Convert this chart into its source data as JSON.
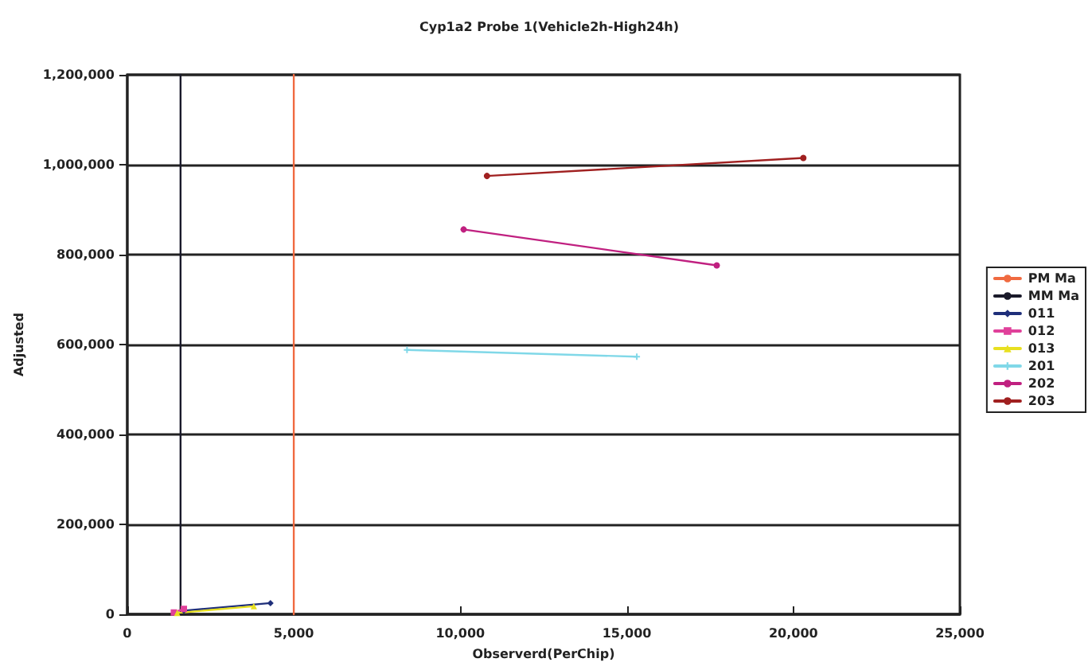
{
  "chart_data": {
    "type": "line",
    "title": "Cyp1a2 Probe 1(Vehicle2h-High24h)",
    "xlabel": "Observerd(PerChip)",
    "ylabel": "Adjusted",
    "xlim": [
      0,
      25000
    ],
    "xticks": [
      {
        "value": 0,
        "label": "0"
      },
      {
        "value": 5000,
        "label": "5,000"
      },
      {
        "value": 10000,
        "label": "10,000"
      },
      {
        "value": 15000,
        "label": "15,000"
      },
      {
        "value": 20000,
        "label": "20,000"
      },
      {
        "value": 25000,
        "label": "25,000"
      }
    ],
    "ylim": [
      0,
      1200000
    ],
    "yticks": [
      {
        "value": 0,
        "label": "0"
      },
      {
        "value": 200000,
        "label": "200,000"
      },
      {
        "value": 400000,
        "label": "400,000"
      },
      {
        "value": 600000,
        "label": "600,000"
      },
      {
        "value": 800000,
        "label": "800,000"
      },
      {
        "value": 1000000,
        "label": "1,000,000"
      },
      {
        "value": 1200000,
        "label": "1,200,000"
      }
    ],
    "grid": "y",
    "legend": "right",
    "marker": "circle",
    "series": [
      {
        "name": "PM Ma",
        "color": "#f06a40",
        "marker": "none",
        "x": [
          5000,
          5000
        ],
        "values": [
          0,
          1200000
        ]
      },
      {
        "name": "MM Ma",
        "color": "#1a1a2a",
        "marker": "none",
        "x": [
          1600,
          1600
        ],
        "values": [
          0,
          1200000
        ]
      },
      {
        "name": "011",
        "color": "#1f2f7a",
        "marker": "diamond",
        "x": [
          1700,
          4300
        ],
        "values": [
          8000,
          25000
        ]
      },
      {
        "name": "012",
        "color": "#e0409a",
        "marker": "square",
        "x": [
          1400,
          1700
        ],
        "values": [
          4000,
          12000
        ]
      },
      {
        "name": "013",
        "color": "#e8e020",
        "marker": "triangle",
        "x": [
          1500,
          3800
        ],
        "values": [
          3000,
          18000
        ]
      },
      {
        "name": "201",
        "color": "#80d8e8",
        "marker": "cross",
        "x": [
          8400,
          15300
        ],
        "values": [
          588000,
          573000
        ]
      },
      {
        "name": "202",
        "color": "#c02080",
        "x": [
          10100,
          17700
        ],
        "values": [
          856000,
          776000
        ]
      },
      {
        "name": "203",
        "color": "#a02020",
        "x": [
          10800,
          20300
        ],
        "values": [
          975000,
          1015000
        ]
      }
    ]
  }
}
